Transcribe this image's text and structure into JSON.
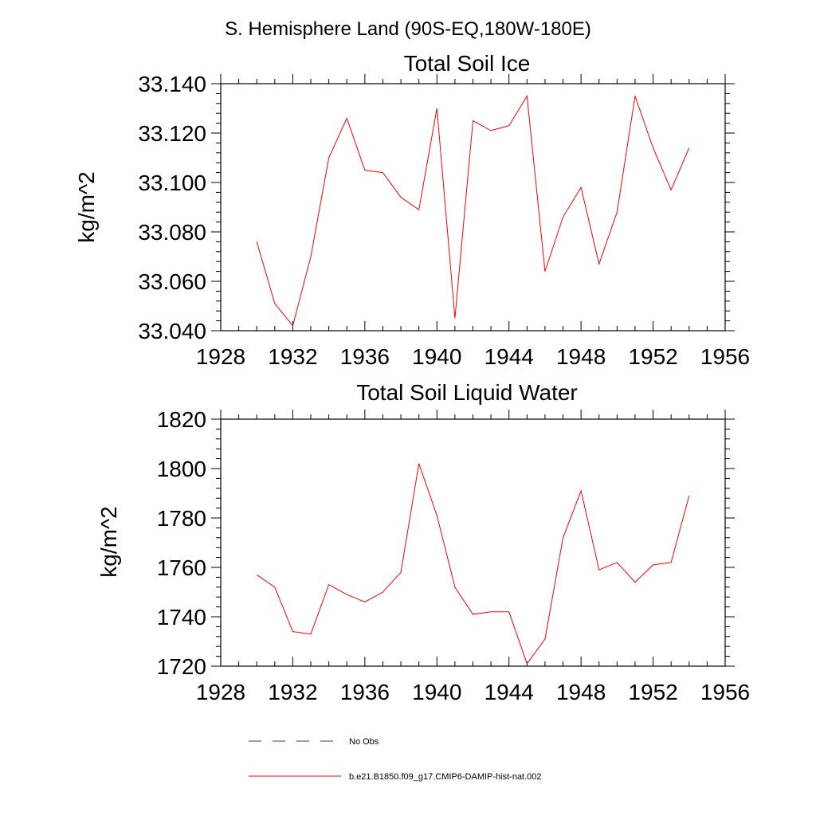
{
  "suptitle": "S. Hemisphere Land (90S-EQ,180W-180E)",
  "colors": {
    "series": "#ff0000",
    "obs": "#3a3a6a",
    "axis": "#000000"
  },
  "legend": [
    {
      "label": "No Obs",
      "style": "dashed",
      "color": "#3a3a6a"
    },
    {
      "label": "b.e21.B1850.f09_g17.CMIP6-DAMIP-hist-nat.002",
      "style": "solid",
      "color": "#ff0000"
    }
  ],
  "chart_data": [
    {
      "type": "line",
      "title": "Total Soil Ice",
      "xlabel": "",
      "ylabel": "kg/m^2",
      "xlim": [
        1928,
        1956
      ],
      "ylim": [
        33.04,
        33.14
      ],
      "xticks": [
        "1928",
        "1932",
        "1936",
        "1940",
        "1944",
        "1948",
        "1952",
        "1956"
      ],
      "yticks": [
        "33.040",
        "33.060",
        "33.080",
        "33.100",
        "33.120",
        "33.140"
      ],
      "x": [
        1930,
        1931,
        1932,
        1933,
        1934,
        1935,
        1936,
        1937,
        1938,
        1939,
        1940,
        1941,
        1942,
        1943,
        1944,
        1945,
        1946,
        1947,
        1948,
        1949,
        1950,
        1951,
        1952,
        1953,
        1954
      ],
      "series": [
        {
          "values": [
            33.076,
            33.051,
            33.042,
            33.07,
            33.11,
            33.126,
            33.105,
            33.104,
            33.094,
            33.089,
            33.13,
            33.045,
            33.125,
            33.121,
            33.123,
            33.135,
            33.064,
            33.086,
            33.098,
            33.067,
            33.088,
            33.135,
            33.114,
            33.097,
            33.114
          ]
        }
      ]
    },
    {
      "type": "line",
      "title": "Total Soil Liquid Water",
      "xlabel": "",
      "ylabel": "kg/m^2",
      "xlim": [
        1928,
        1956
      ],
      "ylim": [
        1720,
        1820
      ],
      "xticks": [
        "1928",
        "1932",
        "1936",
        "1940",
        "1944",
        "1948",
        "1952",
        "1956"
      ],
      "yticks": [
        "1720",
        "1740",
        "1760",
        "1780",
        "1800",
        "1820"
      ],
      "x": [
        1930,
        1931,
        1932,
        1933,
        1934,
        1935,
        1936,
        1937,
        1938,
        1939,
        1940,
        1941,
        1942,
        1943,
        1944,
        1945,
        1946,
        1947,
        1948,
        1949,
        1950,
        1951,
        1952,
        1953,
        1954
      ],
      "series": [
        {
          "values": [
            1757,
            1752,
            1734,
            1733,
            1753,
            1749,
            1746,
            1750,
            1758,
            1802,
            1781,
            1752,
            1741,
            1742,
            1742,
            1721,
            1731,
            1772,
            1791,
            1759,
            1762,
            1754,
            1761,
            1762,
            1789
          ]
        }
      ]
    }
  ]
}
